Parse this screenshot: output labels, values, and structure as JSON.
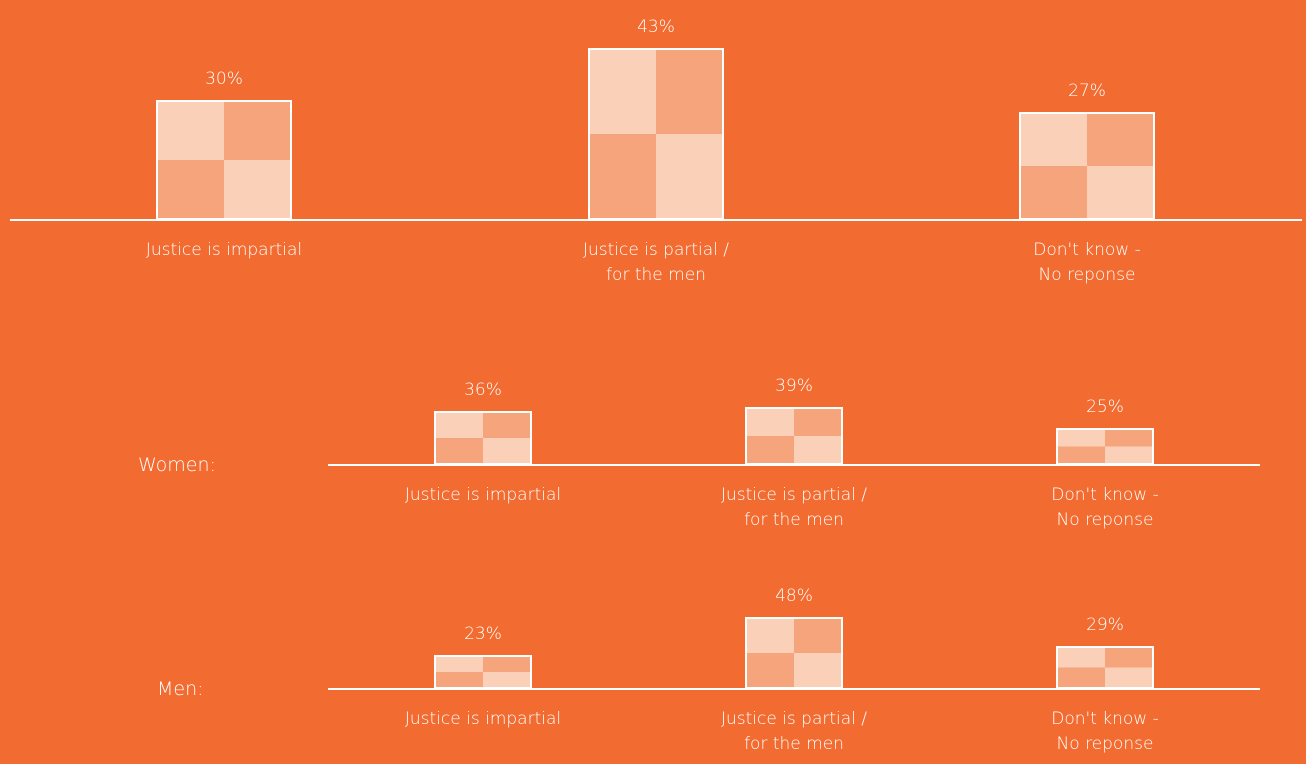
{
  "chart_data": [
    {
      "type": "bar",
      "categories": [
        "Justice is impartial",
        "Justice is partial /\nfor the men",
        "Don't know -\nNo reponse"
      ],
      "values": [
        30,
        43,
        27
      ],
      "value_labels": [
        "30%",
        "43%",
        "27%"
      ],
      "color": "#f8b896"
    },
    {
      "type": "bar",
      "label": "Women:",
      "categories": [
        "Justice is impartial",
        "Justice is partial /\nfor the men",
        "Don't know -\nNo reponse"
      ],
      "values": [
        36,
        39,
        25
      ],
      "value_labels": [
        "36%",
        "39%",
        "25%"
      ],
      "color": "#f8b896"
    },
    {
      "type": "bar",
      "label": "Men:",
      "categories": [
        "Justice is impartial",
        "Justice is partial /\nfor the men",
        "Don't know -\nNo reponse"
      ],
      "values": [
        23,
        48,
        29
      ],
      "value_labels": [
        "23%",
        "48%",
        "29%"
      ],
      "color": "#f8b896"
    }
  ]
}
